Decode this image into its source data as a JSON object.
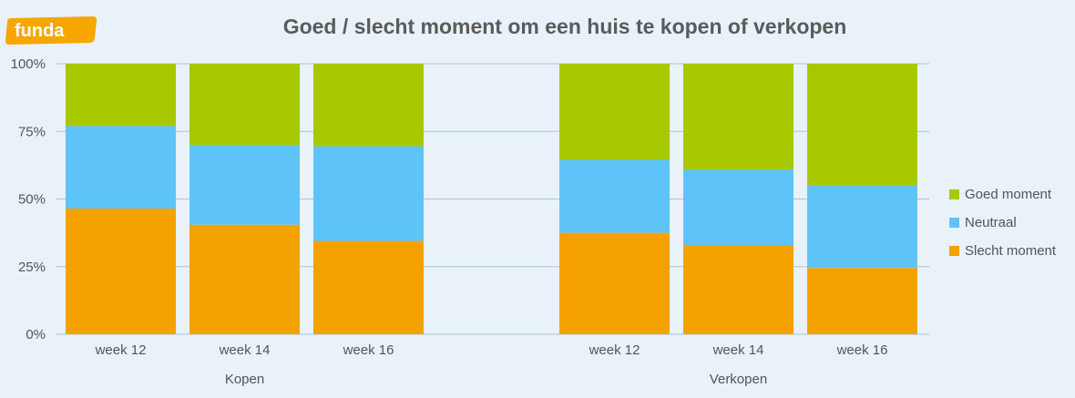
{
  "logo": {
    "text": "funda",
    "color": "#f7a600"
  },
  "chart_data": {
    "type": "stacked-bar",
    "title": "Goed / slecht moment om een huis te kopen of verkopen",
    "ylim": [
      0,
      100
    ],
    "yticks": [
      0,
      25,
      50,
      75,
      100
    ],
    "ytick_labels": [
      "0%",
      "25%",
      "50%",
      "75%",
      "100%"
    ],
    "grid": true,
    "legend_position": "right",
    "groups": [
      {
        "name": "Kopen",
        "categories": [
          "week 12",
          "week 14",
          "week 16"
        ]
      },
      {
        "name": "Verkopen",
        "categories": [
          "week 12",
          "week 14",
          "week 16"
        ]
      }
    ],
    "series": [
      {
        "name": "Slecht moment",
        "color": "#f5a100",
        "values": [
          46.5,
          40.5,
          34.5,
          37.5,
          33,
          24.5
        ]
      },
      {
        "name": "Neutraal",
        "color": "#5ec4f8",
        "values": [
          30.5,
          29.5,
          35,
          27,
          28,
          30.5
        ]
      },
      {
        "name": "Goed moment",
        "color": "#a8c800",
        "values": [
          23,
          30,
          30.5,
          35.5,
          39,
          45
        ]
      }
    ],
    "legend_order": [
      "Goed moment",
      "Neutraal",
      "Slecht moment"
    ]
  }
}
